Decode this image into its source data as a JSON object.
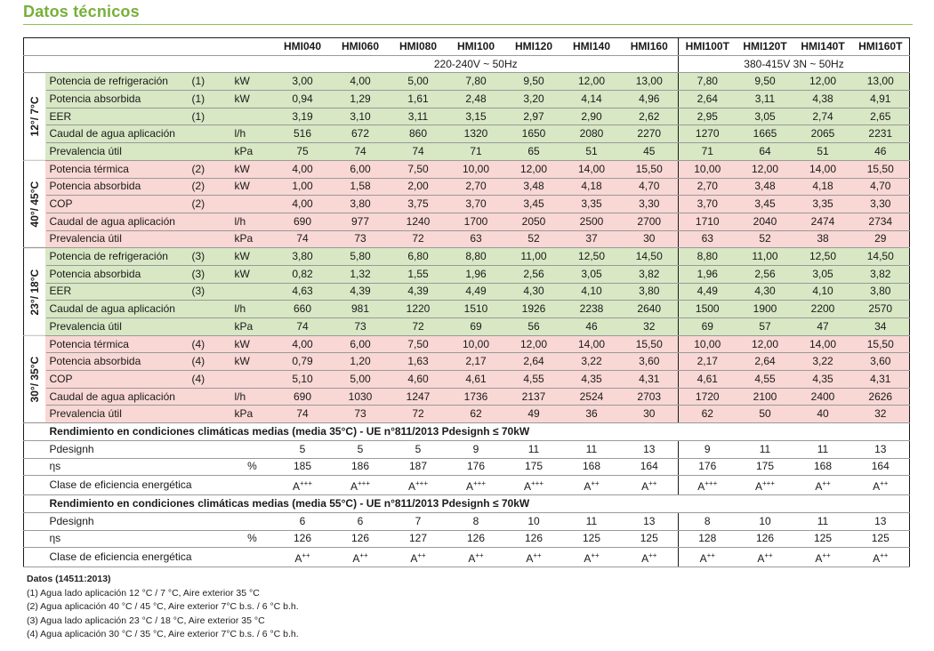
{
  "title": "Datos técnicos",
  "models_1ph": [
    "HMI040",
    "HMI060",
    "HMI080",
    "HMI100",
    "HMI120",
    "HMI140",
    "HMI160"
  ],
  "models_3ph": [
    "HMI100T",
    "HMI120T",
    "HMI140T",
    "HMI160T"
  ],
  "power_1ph": "220-240V ~ 50Hz",
  "power_3ph": "380-415V 3N ~ 50Hz",
  "sections": [
    {
      "label": "12°/ 7°C",
      "color": "#d8e7c4",
      "rows": [
        {
          "label": "Potencia de refrigeración",
          "note": "(1)",
          "unit": "kW",
          "v": [
            "3,00",
            "4,00",
            "5,00",
            "7,80",
            "9,50",
            "12,00",
            "13,00",
            "7,80",
            "9,50",
            "12,00",
            "13,00"
          ]
        },
        {
          "label": "Potencia absorbida",
          "note": "(1)",
          "unit": "kW",
          "v": [
            "0,94",
            "1,29",
            "1,61",
            "2,48",
            "3,20",
            "4,14",
            "4,96",
            "2,64",
            "3,11",
            "4,38",
            "4,91"
          ]
        },
        {
          "label": "EER",
          "note": "(1)",
          "unit": "",
          "v": [
            "3,19",
            "3,10",
            "3,11",
            "3,15",
            "2,97",
            "2,90",
            "2,62",
            "2,95",
            "3,05",
            "2,74",
            "2,65"
          ]
        },
        {
          "label": "Caudal de agua aplicación",
          "note": "",
          "unit": "l/h",
          "v": [
            "516",
            "672",
            "860",
            "1320",
            "1650",
            "2080",
            "2270",
            "1270",
            "1665",
            "2065",
            "2231"
          ]
        },
        {
          "label": "Prevalencia útil",
          "note": "",
          "unit": "kPa",
          "v": [
            "75",
            "74",
            "74",
            "71",
            "65",
            "51",
            "45",
            "71",
            "64",
            "51",
            "46"
          ]
        }
      ]
    },
    {
      "label": "40°/ 45°C",
      "color": "#f8d7d4",
      "rows": [
        {
          "label": "Potencia térmica",
          "note": "(2)",
          "unit": "kW",
          "v": [
            "4,00",
            "6,00",
            "7,50",
            "10,00",
            "12,00",
            "14,00",
            "15,50",
            "10,00",
            "12,00",
            "14,00",
            "15,50"
          ]
        },
        {
          "label": "Potencia absorbida",
          "note": "(2)",
          "unit": "kW",
          "v": [
            "1,00",
            "1,58",
            "2,00",
            "2,70",
            "3,48",
            "4,18",
            "4,70",
            "2,70",
            "3,48",
            "4,18",
            "4,70"
          ]
        },
        {
          "label": "COP",
          "note": "(2)",
          "unit": "",
          "v": [
            "4,00",
            "3,80",
            "3,75",
            "3,70",
            "3,45",
            "3,35",
            "3,30",
            "3,70",
            "3,45",
            "3,35",
            "3,30"
          ]
        },
        {
          "label": "Caudal de agua aplicación",
          "note": "",
          "unit": "l/h",
          "v": [
            "690",
            "977",
            "1240",
            "1700",
            "2050",
            "2500",
            "2700",
            "1710",
            "2040",
            "2474",
            "2734"
          ]
        },
        {
          "label": "Prevalencia útil",
          "note": "",
          "unit": "kPa",
          "v": [
            "74",
            "73",
            "72",
            "63",
            "52",
            "37",
            "30",
            "63",
            "52",
            "38",
            "29"
          ]
        }
      ]
    },
    {
      "label": "23°/ 18°C",
      "color": "#d8e7c4",
      "rows": [
        {
          "label": "Potencia de refrigeración",
          "note": "(3)",
          "unit": "kW",
          "v": [
            "3,80",
            "5,80",
            "6,80",
            "8,80",
            "11,00",
            "12,50",
            "14,50",
            "8,80",
            "11,00",
            "12,50",
            "14,50"
          ]
        },
        {
          "label": "Potencia absorbida",
          "note": "(3)",
          "unit": "kW",
          "v": [
            "0,82",
            "1,32",
            "1,55",
            "1,96",
            "2,56",
            "3,05",
            "3,82",
            "1,96",
            "2,56",
            "3,05",
            "3,82"
          ]
        },
        {
          "label": "EER",
          "note": "(3)",
          "unit": "",
          "v": [
            "4,63",
            "4,39",
            "4,39",
            "4,49",
            "4,30",
            "4,10",
            "3,80",
            "4,49",
            "4,30",
            "4,10",
            "3,80"
          ]
        },
        {
          "label": "Caudal de agua aplicación",
          "note": "",
          "unit": "l/h",
          "v": [
            "660",
            "981",
            "1220",
            "1510",
            "1926",
            "2238",
            "2640",
            "1500",
            "1900",
            "2200",
            "2570"
          ]
        },
        {
          "label": "Prevalencia útil",
          "note": "",
          "unit": "kPa",
          "v": [
            "74",
            "73",
            "72",
            "69",
            "56",
            "46",
            "32",
            "69",
            "57",
            "47",
            "34"
          ]
        }
      ]
    },
    {
      "label": "30°/ 35°C",
      "color": "#f8d7d4",
      "rows": [
        {
          "label": "Potencia térmica",
          "note": "(4)",
          "unit": "kW",
          "v": [
            "4,00",
            "6,00",
            "7,50",
            "10,00",
            "12,00",
            "14,00",
            "15,50",
            "10,00",
            "12,00",
            "14,00",
            "15,50"
          ]
        },
        {
          "label": "Potencia absorbida",
          "note": "(4)",
          "unit": "kW",
          "v": [
            "0,79",
            "1,20",
            "1,63",
            "2,17",
            "2,64",
            "3,22",
            "3,60",
            "2,17",
            "2,64",
            "3,22",
            "3,60"
          ]
        },
        {
          "label": "COP",
          "note": "(4)",
          "unit": "",
          "v": [
            "5,10",
            "5,00",
            "4,60",
            "4,61",
            "4,55",
            "4,35",
            "4,31",
            "4,61",
            "4,55",
            "4,35",
            "4,31"
          ]
        },
        {
          "label": "Caudal de agua aplicación",
          "note": "",
          "unit": "l/h",
          "v": [
            "690",
            "1030",
            "1247",
            "1736",
            "2137",
            "2524",
            "2703",
            "1720",
            "2100",
            "2400",
            "2626"
          ]
        },
        {
          "label": "Prevalencia útil",
          "note": "",
          "unit": "kPa",
          "v": [
            "74",
            "73",
            "72",
            "62",
            "49",
            "36",
            "30",
            "62",
            "50",
            "40",
            "32"
          ]
        }
      ]
    }
  ],
  "climate": [
    {
      "heading": "Rendimiento en condiciones climáticas medias (media 35°C) - UE  n°811/2013 Pdesignh ≤ 70kW",
      "rows": [
        {
          "label": "Pdesignh",
          "unit": "",
          "v": [
            "5",
            "5",
            "5",
            "9",
            "11",
            "11",
            "13",
            "9",
            "11",
            "11",
            "13"
          ]
        },
        {
          "label": "ηs",
          "unit": "%",
          "v": [
            "185",
            "186",
            "187",
            "176",
            "175",
            "168",
            "164",
            "176",
            "175",
            "168",
            "164"
          ]
        },
        {
          "label": "Clase de eficiencia energética",
          "unit": "",
          "v": [
            "A+++",
            "A+++",
            "A+++",
            "A+++",
            "A+++",
            "A++",
            "A++",
            "A+++",
            "A+++",
            "A++",
            "A++"
          ]
        }
      ]
    },
    {
      "heading": "Rendimiento en condiciones climáticas medias (media 55°C) - UE  n°811/2013 Pdesignh ≤ 70kW",
      "rows": [
        {
          "label": "Pdesignh",
          "unit": "",
          "v": [
            "6",
            "6",
            "7",
            "8",
            "10",
            "11",
            "13",
            "8",
            "10",
            "11",
            "13"
          ]
        },
        {
          "label": "ηs",
          "unit": "%",
          "v": [
            "126",
            "126",
            "127",
            "126",
            "126",
            "125",
            "125",
            "128",
            "126",
            "125",
            "125"
          ]
        },
        {
          "label": "Clase de eficiencia energética",
          "unit": "",
          "v": [
            "A++",
            "A++",
            "A++",
            "A++",
            "A++",
            "A++",
            "A++",
            "A++",
            "A++",
            "A++",
            "A++"
          ]
        }
      ]
    }
  ],
  "footer": {
    "heading": "Datos (14511:2013)",
    "notes": [
      "(1) Agua lado aplicación 12 °C / 7 °C, Aire exterior 35 °C",
      "(2) Agua aplicación 40 °C / 45 °C, Aire exterior 7°C b.s. / 6 °C b.h.",
      "(3) Agua lado aplicación 23 °C / 18 °C, Aire exterior 35 °C",
      "(4) Agua aplicación 30 °C / 35 °C, Aire exterior 7°C b.s. / 6 °C b.h."
    ]
  }
}
